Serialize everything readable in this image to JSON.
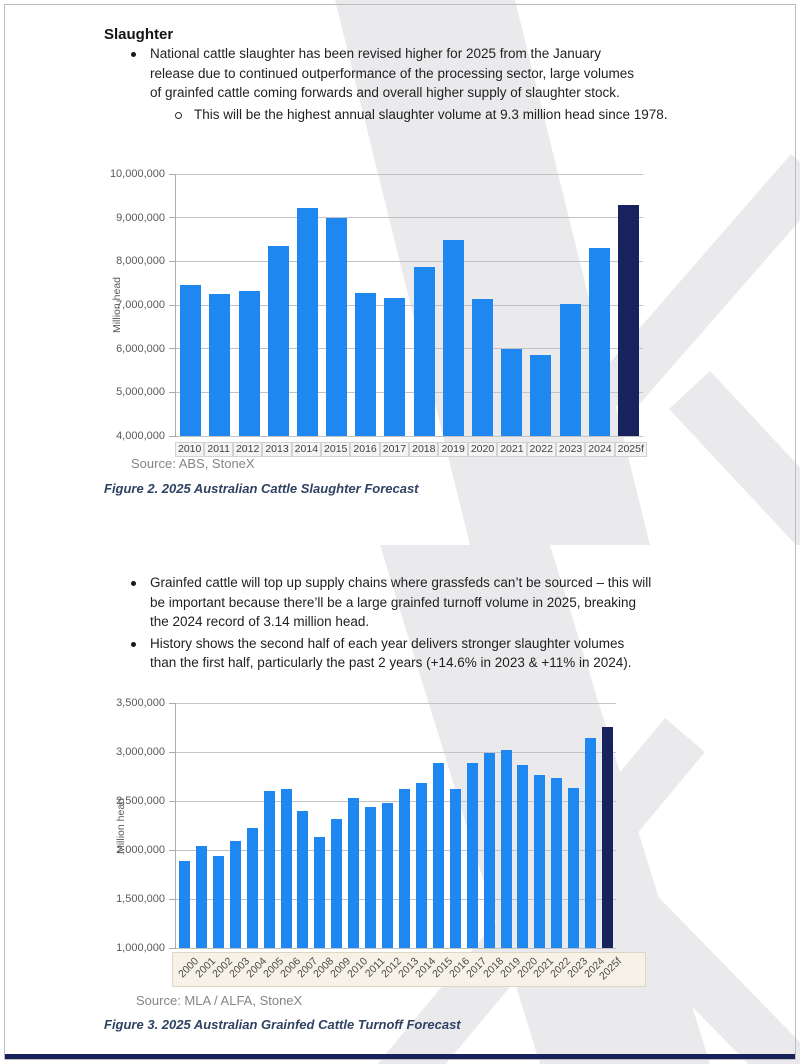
{
  "document": {
    "heading": "Slaughter",
    "section1": {
      "bullet": "National cattle slaughter has been revised higher for 2025 from the January release due to continued outperformance of the processing sector, large volumes of grainfed cattle coming forwards and overall higher supply of slaughter stock.",
      "sub_bullet": "This will be the highest annual slaughter volume at 9.3 million head since 1978."
    },
    "section2": {
      "bullet1": "Grainfed cattle will top up supply chains where grassfeds can’t be sourced – this will be important because there’ll be a large grainfed turnoff volume in 2025, breaking the 2024 record of 3.14 million head.",
      "bullet2": "History shows the second half of each year delivers stronger slaughter volumes than the first half, particularly the past 2 years (+14.6% in 2023 & +11% in 2024)."
    }
  },
  "figure2": {
    "source": "Source: ABS, StoneX",
    "caption": "Figure 2. 2025 Australian Cattle Slaughter Forecast"
  },
  "figure3": {
    "source": "Source: MLA / ALFA, StoneX",
    "caption": "Figure 3. 2025 Australian Grainfed Cattle Turnoff Forecast"
  },
  "colors": {
    "bar_blue": "#1e87f0",
    "bar_navy": "#18235d",
    "caption_blue": "#2e4262",
    "watermark": "#eaeaed",
    "footer_bar": "#17225a"
  },
  "chart_data": [
    {
      "type": "bar",
      "title": "2025 Australian Cattle Slaughter Forecast",
      "xlabel": "",
      "ylabel": "Million head",
      "categories": [
        "2010",
        "2011",
        "2012",
        "2013",
        "2014",
        "2015",
        "2016",
        "2017",
        "2018",
        "2019",
        "2020",
        "2021",
        "2022",
        "2023",
        "2024",
        "2025f"
      ],
      "values": [
        7450000,
        7250000,
        7330000,
        8350000,
        9220000,
        9000000,
        7280000,
        7150000,
        7870000,
        8480000,
        7130000,
        6000000,
        5850000,
        7020000,
        8300000,
        9300000
      ],
      "ylim": [
        4000000,
        10000000
      ],
      "yticks": [
        10000000,
        9000000,
        8000000,
        7000000,
        6000000,
        5000000,
        4000000
      ],
      "grid": true,
      "legend": null,
      "highlight_last": true
    },
    {
      "type": "bar",
      "title": "2025 Australian Grainfed Cattle Turnoff Forecast",
      "xlabel": "",
      "ylabel": "Million head",
      "categories": [
        "2000",
        "2001",
        "2002",
        "2003",
        "2004",
        "2005",
        "2006",
        "2007",
        "2008",
        "2009",
        "2010",
        "2011",
        "2012",
        "2013",
        "2014",
        "2015",
        "2016",
        "2017",
        "2018",
        "2019",
        "2020",
        "2021",
        "2022",
        "2023",
        "2024",
        "2025f"
      ],
      "values": [
        1890000,
        2040000,
        1940000,
        2090000,
        2230000,
        2600000,
        2620000,
        2400000,
        2130000,
        2320000,
        2530000,
        2440000,
        2480000,
        2620000,
        2680000,
        2890000,
        2620000,
        2890000,
        2990000,
        3020000,
        2870000,
        2770000,
        2740000,
        2630000,
        3140000,
        3260000
      ],
      "ylim": [
        1000000,
        3500000
      ],
      "yticks": [
        3500000,
        3000000,
        2500000,
        2000000,
        1500000,
        1000000
      ],
      "grid": true,
      "legend": null,
      "highlight_last": true
    }
  ]
}
